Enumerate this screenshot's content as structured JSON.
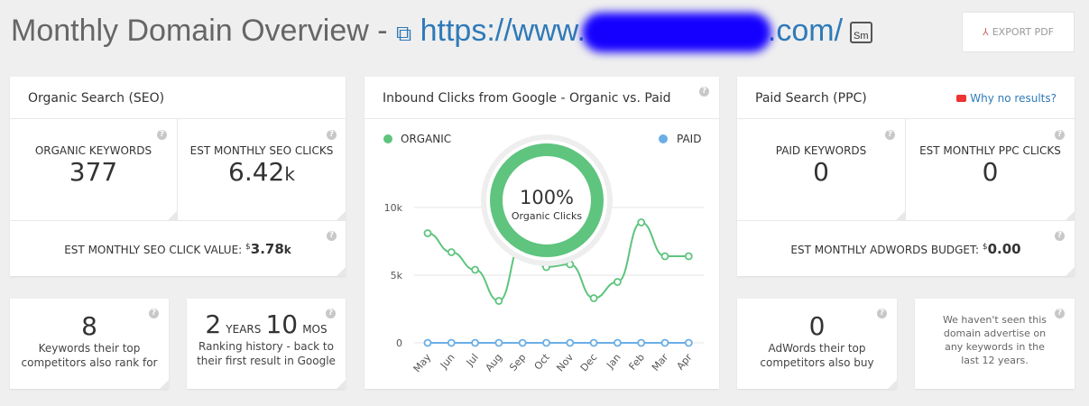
{
  "header": {
    "title": "Monthly Domain Overview - ",
    "url_prefix": "https://www.",
    "url_suffix": ".com/",
    "sm_badge": "Sm",
    "export_label": "EXPORT PDF"
  },
  "seo": {
    "title": "Organic Search (SEO)",
    "organic_keywords_label": "ORGANIC KEYWORDS",
    "organic_keywords": "377",
    "clicks_label": "EST MONTHLY SEO CLICKS",
    "clicks_value": "6.42",
    "clicks_unit": "k",
    "value_label": "EST MONTHLY SEO CLICK VALUE:",
    "value_currency": "$",
    "value_amount": "3.78",
    "value_unit": "k"
  },
  "chart": {
    "title": "Inbound Clicks from Google - Organic vs. Paid",
    "donut_pct": "100%",
    "donut_label": "Organic Clicks",
    "organic_share": 100
  },
  "chart_data": {
    "type": "line",
    "categories": [
      "May",
      "Jun",
      "Jul",
      "Aug",
      "Sep",
      "Oct",
      "Nov",
      "Dec",
      "Jan",
      "Feb",
      "Mar",
      "Apr"
    ],
    "series": [
      {
        "name": "ORGANIC",
        "color": "#5ec47e",
        "values": [
          8100,
          6700,
          5400,
          3100,
          7500,
          5600,
          5800,
          3300,
          4500,
          8900,
          6400,
          6400
        ]
      },
      {
        "name": "PAID",
        "color": "#6aaee6",
        "values": [
          0,
          0,
          0,
          0,
          0,
          0,
          0,
          0,
          0,
          0,
          0,
          0
        ]
      }
    ],
    "yticks": [
      "0",
      "5k",
      "10k"
    ],
    "ylim": [
      0,
      10000
    ],
    "grid": true,
    "legend": "top"
  },
  "ppc": {
    "title": "Paid Search (PPC)",
    "why_link": "Why no results?",
    "paid_keywords_label": "PAID KEYWORDS",
    "paid_keywords": "0",
    "clicks_label": "EST MONTHLY PPC CLICKS",
    "clicks_value": "0",
    "budget_label": "EST MONTHLY ADWORDS BUDGET:",
    "budget_currency": "$",
    "budget_amount": "0.00"
  },
  "bottom": {
    "competitors_count": "8",
    "competitors_text": "Keywords their top competitors also rank for",
    "years": "2",
    "years_unit": "YEARS",
    "mos": "10",
    "mos_unit": "MOS",
    "history_text": "Ranking history - back to their first result in Google",
    "adwords_count": "0",
    "adwords_text": "AdWords their top competitors also buy",
    "advertise_text": "We haven't seen this domain advertise on any keywords in the last 12 years."
  }
}
